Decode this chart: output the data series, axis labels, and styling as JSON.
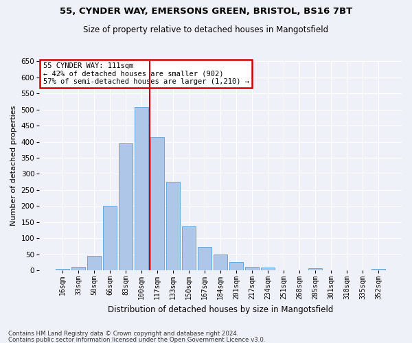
{
  "title1": "55, CYNDER WAY, EMERSONS GREEN, BRISTOL, BS16 7BT",
  "title2": "Size of property relative to detached houses in Mangotsfield",
  "xlabel": "Distribution of detached houses by size in Mangotsfield",
  "ylabel": "Number of detached properties",
  "categories": [
    "16sqm",
    "33sqm",
    "50sqm",
    "66sqm",
    "83sqm",
    "100sqm",
    "117sqm",
    "133sqm",
    "150sqm",
    "167sqm",
    "184sqm",
    "201sqm",
    "217sqm",
    "234sqm",
    "251sqm",
    "268sqm",
    "285sqm",
    "301sqm",
    "318sqm",
    "335sqm",
    "352sqm"
  ],
  "values": [
    5,
    10,
    45,
    200,
    395,
    507,
    415,
    275,
    137,
    73,
    50,
    25,
    10,
    8,
    0,
    0,
    7,
    0,
    0,
    0,
    5
  ],
  "bar_color": "#aec6e8",
  "bar_edge_color": "#5a9fd4",
  "vline_color": "#cc0000",
  "annotation_line1": "55 CYNDER WAY: 111sqm",
  "annotation_line2": "← 42% of detached houses are smaller (902)",
  "annotation_line3": "57% of semi-detached houses are larger (1,210) →",
  "annotation_box_color": "#ffffff",
  "annotation_box_edge": "#cc0000",
  "ylim": [
    0,
    650
  ],
  "yticks": [
    0,
    50,
    100,
    150,
    200,
    250,
    300,
    350,
    400,
    450,
    500,
    550,
    600,
    650
  ],
  "footer1": "Contains HM Land Registry data © Crown copyright and database right 2024.",
  "footer2": "Contains public sector information licensed under the Open Government Licence v3.0.",
  "bg_color": "#eef2f8",
  "grid_color": "#ffffff"
}
